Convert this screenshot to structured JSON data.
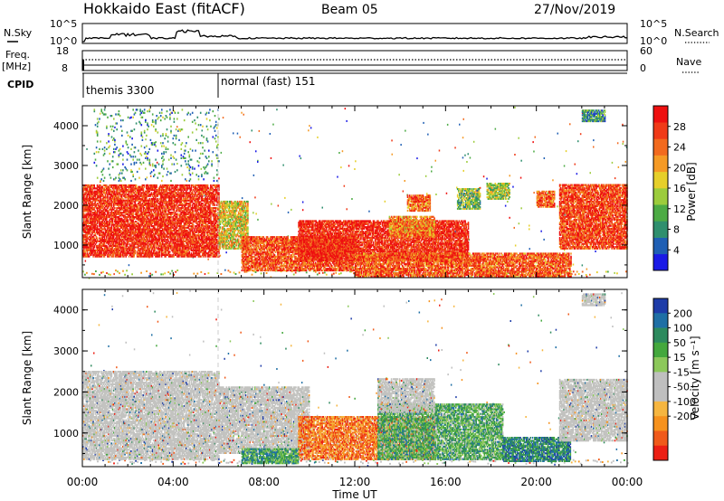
{
  "header": {
    "station": "Hokkaido East (fitACF)",
    "beam": "Beam 05",
    "date": "27/Nov/2019"
  },
  "top_panels": {
    "nsky_label": "N.Sky",
    "nsky_ticks": [
      "10^5",
      "10^0"
    ],
    "nsearch_label": "N.Search",
    "nsearch_ticks": [
      "10^5",
      "10^0"
    ],
    "freq_label": "Freq.",
    "freq_unit": "[MHz]",
    "freq_ticks": [
      "18",
      "8"
    ],
    "nave_label": "Nave",
    "nave_ticks": [
      "60",
      "0"
    ],
    "cpid_label": "CPID",
    "cpid_segments": [
      {
        "start_hour": 0,
        "label": "themis 3300"
      },
      {
        "start_hour": 6,
        "label": "normal (fast) 151"
      }
    ]
  },
  "x_axis": {
    "label": "Time UT",
    "ticks": [
      "00:00",
      "04:00",
      "08:00",
      "12:00",
      "16:00",
      "20:00",
      "00:00"
    ],
    "tick_hours": [
      0,
      4,
      8,
      12,
      16,
      20,
      24
    ]
  },
  "chart_data": [
    {
      "type": "heatmap",
      "name": "power",
      "x_range_hours": [
        0,
        24
      ],
      "ylabel": "Slant Range [km]",
      "ylim": [
        180,
        4500
      ],
      "yticks": [
        "1000",
        "2000",
        "3000",
        "4000"
      ],
      "ytick_values": [
        1000,
        2000,
        3000,
        4000
      ],
      "colorbar": {
        "title": "Power [dB]",
        "range": [
          0,
          32
        ],
        "ticks": [
          "4",
          "8",
          "12",
          "16",
          "20",
          "24",
          "28"
        ],
        "tick_values": [
          4,
          8,
          12,
          16,
          20,
          24,
          28
        ],
        "colors": [
          "#1a1ae6",
          "#1f5fb4",
          "#2f8f6e",
          "#4dab45",
          "#9ccc3c",
          "#e6cf2a",
          "#f59a25",
          "#f26a1e",
          "#f03a18",
          "#ee1010"
        ]
      },
      "regions": [
        {
          "h0": 0.0,
          "h1": 6.0,
          "r0": 700,
          "r1": 2500,
          "level": 0.9
        },
        {
          "h0": 6.0,
          "h1": 7.3,
          "r0": 900,
          "r1": 2100,
          "level": 0.55
        },
        {
          "h0": 7.0,
          "h1": 12.0,
          "r0": 350,
          "r1": 1200,
          "level": 0.82
        },
        {
          "h0": 9.5,
          "h1": 17.0,
          "r0": 600,
          "r1": 1600,
          "level": 0.92
        },
        {
          "h0": 12.0,
          "h1": 21.5,
          "r0": 200,
          "r1": 800,
          "level": 0.8
        },
        {
          "h0": 13.5,
          "h1": 15.5,
          "r0": 1200,
          "r1": 1700,
          "level": 0.7
        },
        {
          "h0": 14.3,
          "h1": 15.3,
          "r0": 1850,
          "r1": 2250,
          "level": 0.78
        },
        {
          "h0": 16.5,
          "h1": 17.5,
          "r0": 1900,
          "r1": 2400,
          "level": 0.4
        },
        {
          "h0": 17.8,
          "h1": 18.8,
          "r0": 2150,
          "r1": 2550,
          "level": 0.45
        },
        {
          "h0": 20.0,
          "h1": 20.8,
          "r0": 1950,
          "r1": 2350,
          "level": 0.8
        },
        {
          "h0": 21.0,
          "h1": 24.0,
          "r0": 900,
          "r1": 2500,
          "level": 0.85
        },
        {
          "h0": 22.0,
          "h1": 23.0,
          "r0": 4100,
          "r1": 4400,
          "level": 0.3
        },
        {
          "h0": 0.5,
          "h1": 6.0,
          "r0": 2600,
          "r1": 4400,
          "level": 0.3,
          "sparse": true
        }
      ]
    },
    {
      "type": "heatmap",
      "name": "velocity",
      "x_range_hours": [
        0,
        24
      ],
      "ylabel": "Slant Range [km]",
      "ylim": [
        180,
        4500
      ],
      "yticks": [
        "1000",
        "2000",
        "3000",
        "4000"
      ],
      "ytick_values": [
        1000,
        2000,
        3000,
        4000
      ],
      "colorbar": {
        "title": "Velocity [m s⁻¹]",
        "range": [
          -250,
          250
        ],
        "ticks": [
          "200",
          "100",
          "50",
          "15",
          "-15",
          "-50",
          "-100",
          "-200"
        ],
        "tick_values": [
          200,
          100,
          50,
          15,
          -15,
          -50,
          -100,
          -200
        ],
        "colors": [
          "#1e3ca8",
          "#1f6fa5",
          "#2d8a5e",
          "#44a83d",
          "#8cc85a",
          "#bfbfbf",
          "#bfbfbf",
          "#f6b640",
          "#f6921e",
          "#f05a1a",
          "#ec1f14"
        ]
      },
      "regions": [
        {
          "h0": 0.0,
          "h1": 6.0,
          "r0": 350,
          "r1": 2500,
          "level": 0.0,
          "grey": true
        },
        {
          "h0": 6.0,
          "h1": 10.0,
          "r0": 500,
          "r1": 2100,
          "level": 0.0,
          "grey": true
        },
        {
          "h0": 9.5,
          "h1": 15.5,
          "r0": 350,
          "r1": 1400,
          "level": -0.6
        },
        {
          "h0": 13.0,
          "h1": 18.5,
          "r0": 350,
          "r1": 1700,
          "level": 0.35
        },
        {
          "h0": 13.0,
          "h1": 15.5,
          "r0": 1500,
          "r1": 2300,
          "level": 0.0,
          "grey": true
        },
        {
          "h0": 18.5,
          "h1": 21.5,
          "r0": 300,
          "r1": 900,
          "level": 0.6
        },
        {
          "h0": 7.0,
          "h1": 9.5,
          "r0": 250,
          "r1": 600,
          "level": 0.45
        },
        {
          "h0": 21.0,
          "h1": 24.0,
          "r0": 800,
          "r1": 2300,
          "level": 0.0,
          "grey": true
        },
        {
          "h0": 22.0,
          "h1": 23.0,
          "r0": 4100,
          "r1": 4400,
          "level": 0.0,
          "grey": true
        }
      ]
    }
  ]
}
